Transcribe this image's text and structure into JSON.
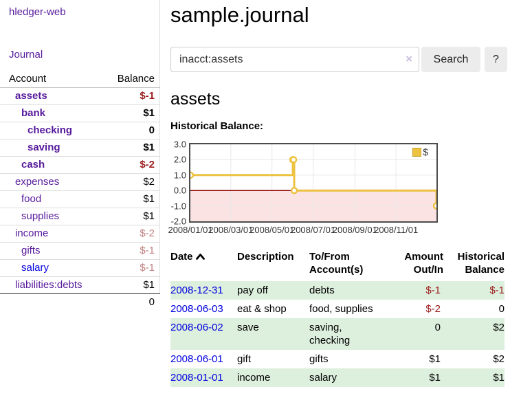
{
  "sidebar": {
    "brand": "hledger-web",
    "nav_journal": "Journal",
    "accounts": {
      "header_account": "Account",
      "header_balance": "Balance",
      "rows": [
        {
          "name": "assets",
          "balance": "$-1"
        },
        {
          "name": "bank",
          "balance": "$1"
        },
        {
          "name": "checking",
          "balance": "0"
        },
        {
          "name": "saving",
          "balance": "$1"
        },
        {
          "name": "cash",
          "balance": "$-2"
        },
        {
          "name": "expenses",
          "balance": "$2"
        },
        {
          "name": "food",
          "balance": "$1"
        },
        {
          "name": "supplies",
          "balance": "$1"
        },
        {
          "name": "income",
          "balance": "$-2"
        },
        {
          "name": "gifts",
          "balance": "$-1"
        },
        {
          "name": "salary",
          "balance": "$-1"
        },
        {
          "name": "liabilities:debts",
          "balance": "$1"
        }
      ],
      "total": "0"
    }
  },
  "main": {
    "title": "sample.journal",
    "search": {
      "value": "inacct:assets",
      "clear_icon": "×",
      "search_button": "Search",
      "help_button": "?"
    },
    "heading": "assets",
    "chart_title": "Historical Balance:"
  },
  "chart_data": {
    "type": "line",
    "title": "Historical Balance",
    "series": [
      {
        "name": "$",
        "color": "#edc240",
        "step": true,
        "points": [
          [
            "2008-01-01",
            1
          ],
          [
            "2008-06-01",
            2
          ],
          [
            "2008-06-02",
            2
          ],
          [
            "2008-06-03",
            0
          ],
          [
            "2008-12-31",
            -1
          ]
        ]
      }
    ],
    "x_range": [
      "2008-01-01",
      "2008-12-31"
    ],
    "ylim": [
      -2,
      3
    ],
    "y_ticks": [
      3,
      2,
      1,
      0,
      -1,
      -2
    ],
    "y_tick_labels": [
      "3.0",
      "2.0",
      "1.0",
      "0.0",
      "-1.0",
      "-2.0"
    ],
    "x_ticks": [
      "2008/01/01",
      "2008/03/01",
      "2008/05/01",
      "2008/07/01",
      "2008/09/01",
      "2008/11/01"
    ],
    "grid": true,
    "gridline_color": "#e8e8e8",
    "negative_region_color": "#fbe3e3",
    "zero_line_color": "#8b0000",
    "legend_position": "top-right"
  },
  "register": {
    "headers": {
      "date": "Date",
      "description": "Description",
      "account": "To/From Account(s)",
      "amount": "Amount Out/In",
      "balance": "Historical Balance"
    },
    "rows": [
      {
        "date": "2008-12-31",
        "description": "pay off",
        "account": "debts",
        "amount": "$-1",
        "balance": "$-1"
      },
      {
        "date": "2008-06-03",
        "description": "eat & shop",
        "account": "food, supplies",
        "amount": "$-2",
        "balance": "0"
      },
      {
        "date": "2008-06-02",
        "description": "save",
        "account": "saving, checking",
        "amount": "0",
        "balance": "$2"
      },
      {
        "date": "2008-06-01",
        "description": "gift",
        "account": "gifts",
        "amount": "$1",
        "balance": "$2"
      },
      {
        "date": "2008-01-01",
        "description": "income",
        "account": "salary",
        "amount": "$1",
        "balance": "$1"
      }
    ]
  }
}
